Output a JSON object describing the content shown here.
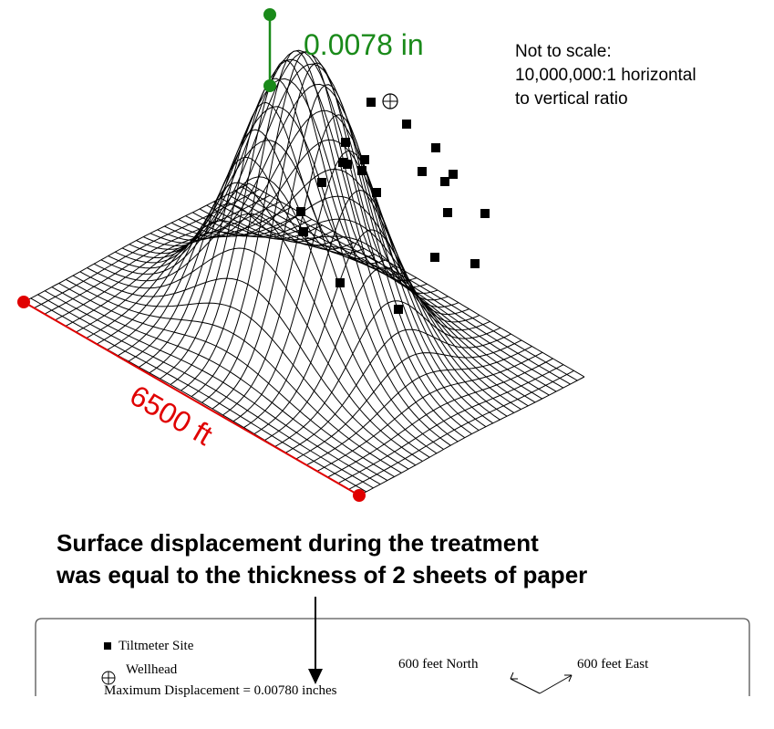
{
  "scale_bar": {
    "label": "0.0078 in",
    "color": "#1a8a1a"
  },
  "note": {
    "line1": "Not to scale:",
    "line2": "10,000,000:1 horizontal",
    "line3": "to vertical ratio"
  },
  "dimension": {
    "label": "6500 ft",
    "color": "#e00000"
  },
  "headline": {
    "line1": "Surface displacement during the treatment",
    "line2": "was equal to the thickness of 2 sheets of paper"
  },
  "legend": {
    "tiltmeter_label": "Tiltmeter Site",
    "wellhead_label": "Wellhead",
    "north_label": "600 feet North",
    "east_label": "600 feet East",
    "max_displacement_label": "Maximum Displacement = 0.00780 inches"
  }
}
